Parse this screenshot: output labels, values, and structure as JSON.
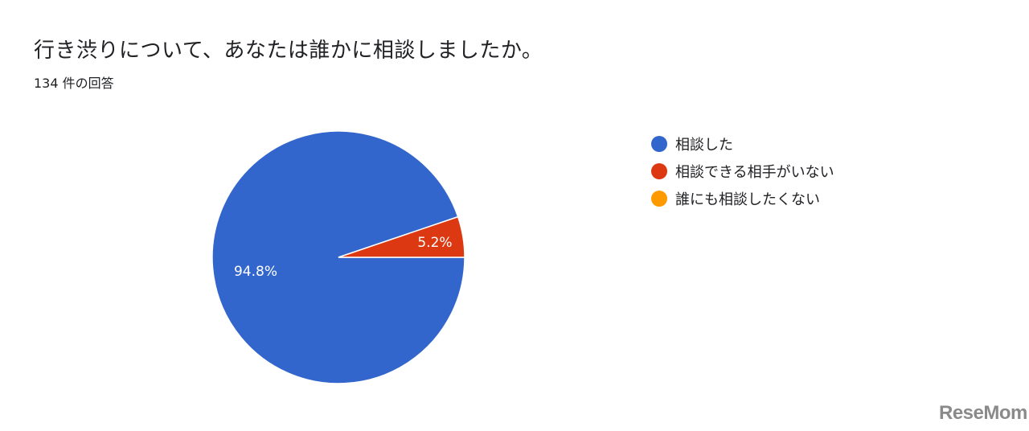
{
  "header": {
    "title": "行き渋りについて、あなたは誰かに相談しましたか。",
    "subtitle": "134 件の回答"
  },
  "chart_data": {
    "type": "pie",
    "categories": [
      "相談した",
      "相談できる相手がいない",
      "誰にも相談したくない"
    ],
    "values": [
      94.8,
      5.2,
      0
    ],
    "labels": [
      "94.8%",
      "5.2%",
      ""
    ],
    "colors": [
      "#3366cc",
      "#dc3912",
      "#ff9900"
    ],
    "legend": "right"
  },
  "watermark": "ReseMom"
}
